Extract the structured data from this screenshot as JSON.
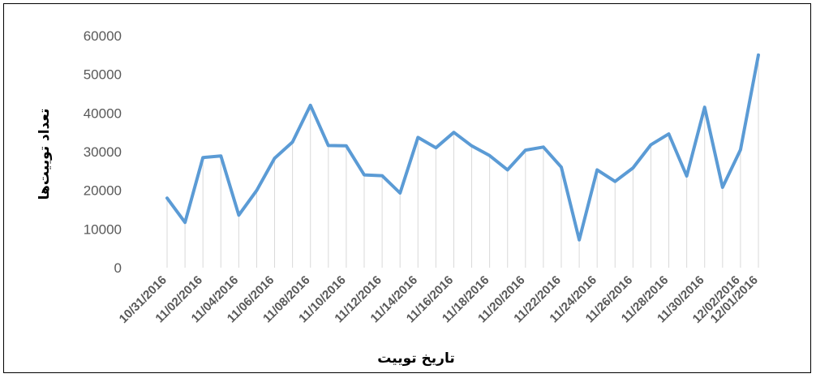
{
  "chart_data": {
    "type": "line",
    "title": "",
    "xlabel": "تاریخ  توییت",
    "ylabel": "تعداد توییت‌ها",
    "ylim": [
      0,
      60000
    ],
    "yticks": [
      "0",
      "10000",
      "20000",
      "30000",
      "40000",
      "50000",
      "60000"
    ],
    "x_tick_labels": [
      "10/31/2016",
      "11/02/2016",
      "11/04/2016",
      "11/06/2016",
      "11/08/2016",
      "11/10/2016",
      "11/12/2016",
      "11/14/2016",
      "11/16/2016",
      "11/18/2016",
      "11/20/2016",
      "11/22/2016",
      "11/24/2016",
      "11/26/2016",
      "11/28/2016",
      "11/30/2016",
      "12/02/2016",
      "12/01/2016"
    ],
    "grid": "vertical drop lines",
    "series": [
      {
        "color": "#5b9bd5",
        "values": [
          18000,
          11700,
          28500,
          28900,
          13600,
          20000,
          28300,
          32500,
          42000,
          31600,
          31500,
          24000,
          23800,
          19300,
          33700,
          31000,
          35000,
          31500,
          29000,
          25300,
          30400,
          31200,
          26000,
          7200,
          25300,
          22300,
          25800,
          31800,
          34600,
          23700,
          41500,
          20800,
          30500,
          55000
        ]
      }
    ]
  }
}
